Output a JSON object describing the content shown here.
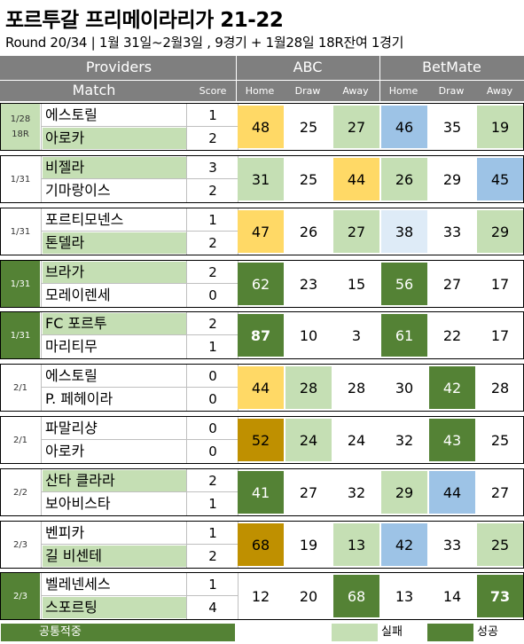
{
  "title": "포르투갈 프리메이라리가 21-22",
  "subtitle": "Round 20/34 | 1월 31일~2월3일 , 9경기 + 1월28일 18R잔여 1경기",
  "header": {
    "providers": "Providers",
    "match": "Match",
    "score": "Score",
    "abc": "ABC",
    "betmate": "BetMate",
    "home": "Home",
    "draw": "Draw",
    "away": "Away"
  },
  "colors": {
    "header_gray": "#7f7f7f",
    "light_green": "#c5dfb4",
    "dark_green": "#548235",
    "yellow": "#ffd966",
    "gold": "#bf9000",
    "blue": "#9dc3e6",
    "light_blue": "#deebf7"
  },
  "games": [
    {
      "round": "1/28\n18R",
      "roundBg": "g1",
      "home": {
        "name": "에스토릴",
        "score": "1",
        "bg": ""
      },
      "away": {
        "name": "아로카",
        "score": "2",
        "bg": "g1"
      },
      "abc": [
        {
          "v": "48",
          "c": "yellow"
        },
        {
          "v": "25",
          "c": ""
        },
        {
          "v": "27",
          "c": "g1"
        }
      ],
      "bm": [
        {
          "v": "46",
          "c": "blue"
        },
        {
          "v": "35",
          "c": ""
        },
        {
          "v": "19",
          "c": "g1"
        }
      ]
    },
    {
      "round": "1/31",
      "roundBg": "",
      "home": {
        "name": "비젤라",
        "score": "3",
        "bg": "g1"
      },
      "away": {
        "name": "기마랑이스",
        "score": "2",
        "bg": ""
      },
      "abc": [
        {
          "v": "31",
          "c": "g1"
        },
        {
          "v": "25",
          "c": ""
        },
        {
          "v": "44",
          "c": "yellow"
        }
      ],
      "bm": [
        {
          "v": "26",
          "c": "g1"
        },
        {
          "v": "29",
          "c": ""
        },
        {
          "v": "45",
          "c": "blue"
        }
      ]
    },
    {
      "round": "1/31",
      "roundBg": "",
      "home": {
        "name": "포르티모넨스",
        "score": "1",
        "bg": ""
      },
      "away": {
        "name": "톤델라",
        "score": "2",
        "bg": "g1"
      },
      "abc": [
        {
          "v": "47",
          "c": "yellow"
        },
        {
          "v": "26",
          "c": ""
        },
        {
          "v": "27",
          "c": "g1"
        }
      ],
      "bm": [
        {
          "v": "38",
          "c": "lblue"
        },
        {
          "v": "33",
          "c": ""
        },
        {
          "v": "29",
          "c": "g1"
        }
      ]
    },
    {
      "round": "1/31",
      "roundBg": "dkg",
      "home": {
        "name": "브라가",
        "score": "2",
        "bg": "g1"
      },
      "away": {
        "name": "모레이렌세",
        "score": "0",
        "bg": ""
      },
      "abc": [
        {
          "v": "62",
          "c": "dkg"
        },
        {
          "v": "23",
          "c": ""
        },
        {
          "v": "15",
          "c": ""
        }
      ],
      "bm": [
        {
          "v": "56",
          "c": "dkg"
        },
        {
          "v": "27",
          "c": ""
        },
        {
          "v": "17",
          "c": ""
        }
      ]
    },
    {
      "round": "1/31",
      "roundBg": "dkg",
      "home": {
        "name": "FC 포르투",
        "score": "2",
        "bg": "g1"
      },
      "away": {
        "name": "마리티무",
        "score": "1",
        "bg": ""
      },
      "abc": [
        {
          "v": "87",
          "c": "dkg bold"
        },
        {
          "v": "10",
          "c": ""
        },
        {
          "v": "3",
          "c": ""
        }
      ],
      "bm": [
        {
          "v": "61",
          "c": "dkg"
        },
        {
          "v": "22",
          "c": ""
        },
        {
          "v": "17",
          "c": ""
        }
      ]
    },
    {
      "round": "2/1",
      "roundBg": "",
      "home": {
        "name": "에스토릴",
        "score": "0",
        "bg": ""
      },
      "away": {
        "name": "P. 페헤이라",
        "score": "0",
        "bg": ""
      },
      "abc": [
        {
          "v": "44",
          "c": "yellow"
        },
        {
          "v": "28",
          "c": "g1"
        },
        {
          "v": "28",
          "c": ""
        }
      ],
      "bm": [
        {
          "v": "30",
          "c": ""
        },
        {
          "v": "42",
          "c": "dkg"
        },
        {
          "v": "28",
          "c": ""
        }
      ]
    },
    {
      "round": "2/1",
      "roundBg": "",
      "home": {
        "name": "파말리샹",
        "score": "0",
        "bg": ""
      },
      "away": {
        "name": "아로카",
        "score": "0",
        "bg": ""
      },
      "abc": [
        {
          "v": "52",
          "c": "gold"
        },
        {
          "v": "24",
          "c": "g1"
        },
        {
          "v": "24",
          "c": ""
        }
      ],
      "bm": [
        {
          "v": "32",
          "c": ""
        },
        {
          "v": "43",
          "c": "dkg"
        },
        {
          "v": "25",
          "c": ""
        }
      ]
    },
    {
      "round": "2/2",
      "roundBg": "",
      "home": {
        "name": "산타 클라라",
        "score": "2",
        "bg": "g1"
      },
      "away": {
        "name": "보아비스타",
        "score": "1",
        "bg": ""
      },
      "abc": [
        {
          "v": "41",
          "c": "dkg"
        },
        {
          "v": "27",
          "c": ""
        },
        {
          "v": "32",
          "c": ""
        }
      ],
      "bm": [
        {
          "v": "29",
          "c": "g1"
        },
        {
          "v": "44",
          "c": "blue"
        },
        {
          "v": "27",
          "c": ""
        }
      ]
    },
    {
      "round": "2/3",
      "roundBg": "",
      "home": {
        "name": "벤피카",
        "score": "1",
        "bg": ""
      },
      "away": {
        "name": "길 비센테",
        "score": "2",
        "bg": "g1"
      },
      "abc": [
        {
          "v": "68",
          "c": "gold"
        },
        {
          "v": "19",
          "c": ""
        },
        {
          "v": "13",
          "c": "g1"
        }
      ],
      "bm": [
        {
          "v": "42",
          "c": "blue"
        },
        {
          "v": "33",
          "c": ""
        },
        {
          "v": "25",
          "c": "g1"
        }
      ]
    },
    {
      "round": "2/3",
      "roundBg": "dkg",
      "home": {
        "name": "벨레넨세스",
        "score": "1",
        "bg": ""
      },
      "away": {
        "name": "스포르팅",
        "score": "4",
        "bg": "g1"
      },
      "abc": [
        {
          "v": "12",
          "c": ""
        },
        {
          "v": "20",
          "c": ""
        },
        {
          "v": "68",
          "c": "dkg"
        }
      ],
      "bm": [
        {
          "v": "13",
          "c": ""
        },
        {
          "v": "14",
          "c": ""
        },
        {
          "v": "73",
          "c": "dkg bold"
        }
      ]
    }
  ],
  "legend": {
    "common": "공통적중",
    "fail": "실패",
    "success": "성공"
  }
}
